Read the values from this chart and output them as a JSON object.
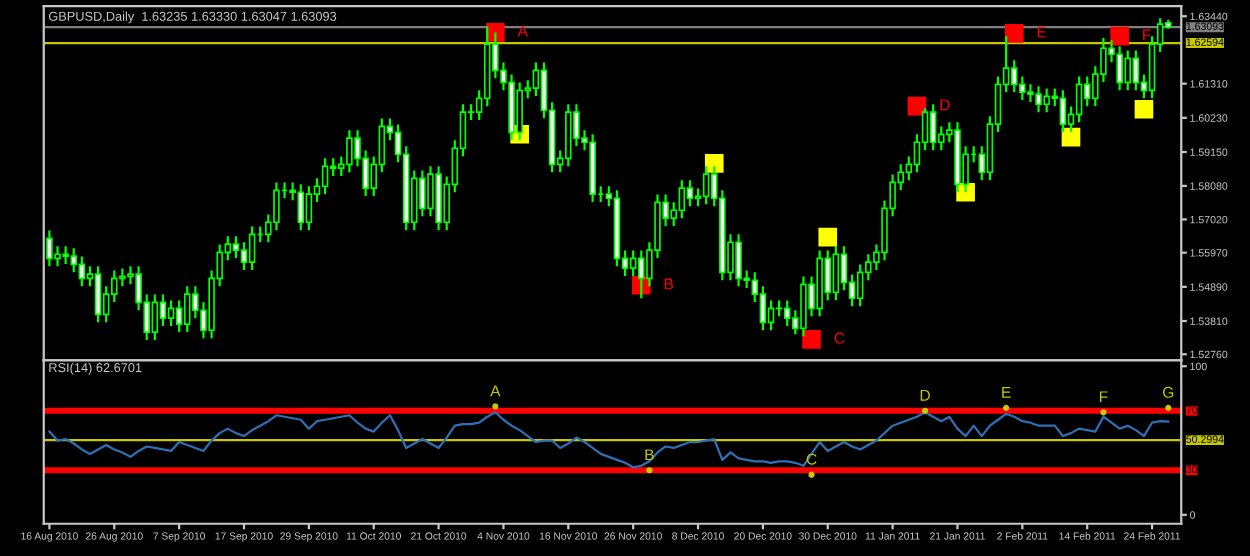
{
  "chart_data": [
    {
      "type": "candlestick",
      "title": "GBPUSD,Daily  1.63235 1.63330 1.63047 1.63093",
      "color": "#00ff00",
      "tick_labels": "y",
      "grid": false,
      "categories": [
        null,
        null,
        null,
        null,
        null,
        null,
        null,
        null,
        null,
        null,
        null,
        null,
        null,
        null,
        null,
        null,
        null,
        null,
        null,
        null,
        null,
        null,
        null,
        null,
        null,
        null,
        null,
        null,
        null,
        null,
        null,
        null,
        null,
        null,
        null,
        null,
        null,
        null,
        null,
        null,
        null,
        null,
        null,
        null,
        null,
        null,
        null,
        null,
        null,
        null,
        null,
        null,
        null,
        null,
        null,
        null,
        null,
        null,
        null,
        null,
        null,
        null,
        null,
        null,
        null,
        null,
        null,
        null,
        null,
        null,
        null,
        null,
        null,
        null,
        null,
        null,
        null,
        null,
        null,
        null,
        null,
        null,
        null,
        null,
        null,
        null,
        null,
        null,
        null,
        null,
        null,
        null,
        null,
        null,
        null,
        null,
        null,
        null,
        null,
        null,
        null,
        null,
        null,
        null,
        null,
        null,
        null,
        null,
        null,
        null,
        null,
        null,
        null,
        null,
        null,
        null,
        null,
        null,
        null,
        null,
        null,
        null,
        null,
        null,
        null,
        null,
        null,
        null,
        null,
        null,
        null,
        null,
        null,
        null,
        null,
        null,
        null,
        null,
        null
      ],
      "ohlc": [
        [
          1.5642,
          1.5667,
          1.5554,
          1.5579
        ],
        [
          1.5579,
          1.5617,
          1.5554,
          1.5592
        ],
        [
          1.5592,
          1.5617,
          1.5561,
          1.5586
        ],
        [
          1.5586,
          1.5611,
          1.5535,
          1.556
        ],
        [
          1.556,
          1.5585,
          1.5491,
          1.5516
        ],
        [
          1.5516,
          1.5554,
          1.5491,
          1.5529
        ],
        [
          1.5529,
          1.5554,
          1.5377,
          1.5402
        ],
        [
          1.5402,
          1.5491,
          1.5377,
          1.5466
        ],
        [
          1.5466,
          1.5541,
          1.5441,
          1.5516
        ],
        [
          1.5516,
          1.5547,
          1.5491,
          1.5522
        ],
        [
          1.5522,
          1.5554,
          1.5497,
          1.5529
        ],
        [
          1.5529,
          1.5554,
          1.5415,
          1.544
        ],
        [
          1.544,
          1.5465,
          1.5321,
          1.5346
        ],
        [
          1.5346,
          1.5465,
          1.5321,
          1.544
        ],
        [
          1.544,
          1.5465,
          1.5365,
          1.539
        ],
        [
          1.539,
          1.5446,
          1.5365,
          1.5421
        ],
        [
          1.5421,
          1.5446,
          1.5346,
          1.5371
        ],
        [
          1.5371,
          1.5491,
          1.5346,
          1.5466
        ],
        [
          1.5466,
          1.5491,
          1.539,
          1.5415
        ],
        [
          1.5415,
          1.544,
          1.5327,
          1.5352
        ],
        [
          1.5352,
          1.5541,
          1.5327,
          1.5516
        ],
        [
          1.5516,
          1.5623,
          1.5491,
          1.5598
        ],
        [
          1.5598,
          1.5649,
          1.5573,
          1.5624
        ],
        [
          1.5624,
          1.5649,
          1.558,
          1.5605
        ],
        [
          1.5605,
          1.563,
          1.5542,
          1.5567
        ],
        [
          1.5567,
          1.568,
          1.5542,
          1.5655
        ],
        [
          1.5655,
          1.568,
          1.563,
          1.5655
        ],
        [
          1.5655,
          1.5718,
          1.563,
          1.5693
        ],
        [
          1.5693,
          1.5819,
          1.5668,
          1.5794
        ],
        [
          1.5794,
          1.5819,
          1.5769,
          1.5794
        ],
        [
          1.5794,
          1.5819,
          1.5763,
          1.5788
        ],
        [
          1.5788,
          1.5813,
          1.5668,
          1.5693
        ],
        [
          1.5693,
          1.5807,
          1.5668,
          1.5782
        ],
        [
          1.5782,
          1.5832,
          1.5757,
          1.5807
        ],
        [
          1.5807,
          1.5895,
          1.5782,
          1.587
        ],
        [
          1.587,
          1.5895,
          1.5839,
          1.5864
        ],
        [
          1.5864,
          1.5901,
          1.5839,
          1.5876
        ],
        [
          1.5876,
          1.5984,
          1.5851,
          1.5959
        ],
        [
          1.5959,
          1.5984,
          1.587,
          1.5895
        ],
        [
          1.5895,
          1.592,
          1.5776,
          1.5801
        ],
        [
          1.5801,
          1.5901,
          1.5776,
          1.5876
        ],
        [
          1.5876,
          1.6021,
          1.5851,
          1.5996
        ],
        [
          1.5996,
          1.6021,
          1.5952,
          1.5977
        ],
        [
          1.5977,
          1.6002,
          1.5883,
          1.5908
        ],
        [
          1.5908,
          1.5933,
          1.5668,
          1.5693
        ],
        [
          1.5693,
          1.5857,
          1.5668,
          1.5832
        ],
        [
          1.5832,
          1.5857,
          1.5712,
          1.5737
        ],
        [
          1.5737,
          1.587,
          1.5712,
          1.5845
        ],
        [
          1.5845,
          1.587,
          1.5668,
          1.5693
        ],
        [
          1.5693,
          1.5838,
          1.5668,
          1.5813
        ],
        [
          1.5813,
          1.5952,
          1.5788,
          1.5927
        ],
        [
          1.5927,
          1.6066,
          1.5902,
          1.6041
        ],
        [
          1.6041,
          1.6066,
          1.6016,
          1.6041
        ],
        [
          1.6041,
          1.611,
          1.6016,
          1.6085
        ],
        [
          1.6085,
          1.6312,
          1.606,
          1.6256
        ],
        [
          1.6256,
          1.6293,
          1.6148,
          1.6173
        ],
        [
          1.6173,
          1.6198,
          1.611,
          1.6135
        ],
        [
          1.6135,
          1.616,
          1.5952,
          1.5977
        ],
        [
          1.5977,
          1.6135,
          1.5952,
          1.611
        ],
        [
          1.611,
          1.6142,
          1.6085,
          1.6117
        ],
        [
          1.6117,
          1.6198,
          1.6092,
          1.6173
        ],
        [
          1.6173,
          1.6198,
          1.6022,
          1.6047
        ],
        [
          1.6047,
          1.6072,
          1.5851,
          1.5876
        ],
        [
          1.5876,
          1.592,
          1.5851,
          1.5895
        ],
        [
          1.5895,
          1.6066,
          1.587,
          1.6041
        ],
        [
          1.6041,
          1.6066,
          1.5934,
          1.5959
        ],
        [
          1.5959,
          1.5984,
          1.5921,
          1.5946
        ],
        [
          1.5946,
          1.5971,
          1.5757,
          1.5782
        ],
        [
          1.5782,
          1.5807,
          1.5757,
          1.5782
        ],
        [
          1.5782,
          1.5807,
          1.5744,
          1.5769
        ],
        [
          1.5769,
          1.5794,
          1.5554,
          1.5579
        ],
        [
          1.5579,
          1.5604,
          1.5523,
          1.5548
        ],
        [
          1.5548,
          1.5604,
          1.5523,
          1.5579
        ],
        [
          1.5579,
          1.5604,
          1.5453,
          1.5516
        ],
        [
          1.5516,
          1.563,
          1.5491,
          1.5605
        ],
        [
          1.5605,
          1.5781,
          1.558,
          1.5756
        ],
        [
          1.5756,
          1.5781,
          1.5681,
          1.5706
        ],
        [
          1.5706,
          1.5756,
          1.5681,
          1.5731
        ],
        [
          1.5731,
          1.5826,
          1.5706,
          1.5801
        ],
        [
          1.5801,
          1.5826,
          1.5744,
          1.5769
        ],
        [
          1.5769,
          1.58,
          1.5744,
          1.5775
        ],
        [
          1.5775,
          1.587,
          1.575,
          1.5845
        ],
        [
          1.5845,
          1.587,
          1.5744,
          1.5769
        ],
        [
          1.5769,
          1.5794,
          1.551,
          1.5535
        ],
        [
          1.5535,
          1.5655,
          1.551,
          1.563
        ],
        [
          1.563,
          1.5655,
          1.5491,
          1.5516
        ],
        [
          1.5516,
          1.5541,
          1.5485,
          1.551
        ],
        [
          1.551,
          1.5535,
          1.5441,
          1.5466
        ],
        [
          1.5466,
          1.5491,
          1.5352,
          1.5377
        ],
        [
          1.5377,
          1.5446,
          1.5352,
          1.5421
        ],
        [
          1.5421,
          1.5446,
          1.5396,
          1.5421
        ],
        [
          1.5421,
          1.5446,
          1.5365,
          1.539
        ],
        [
          1.539,
          1.5415,
          1.5339,
          1.5358
        ],
        [
          1.5358,
          1.5522,
          1.5333,
          1.5497
        ],
        [
          1.5497,
          1.5522,
          1.5396,
          1.5421
        ],
        [
          1.5421,
          1.5604,
          1.5396,
          1.5579
        ],
        [
          1.5579,
          1.5604,
          1.5447,
          1.5472
        ],
        [
          1.5472,
          1.5617,
          1.5447,
          1.5592
        ],
        [
          1.5592,
          1.5617,
          1.5478,
          1.5503
        ],
        [
          1.5503,
          1.5528,
          1.5428,
          1.5453
        ],
        [
          1.5453,
          1.556,
          1.5428,
          1.5535
        ],
        [
          1.5535,
          1.5592,
          1.551,
          1.5567
        ],
        [
          1.5567,
          1.5623,
          1.5542,
          1.5598
        ],
        [
          1.5598,
          1.5762,
          1.5573,
          1.5737
        ],
        [
          1.5737,
          1.5844,
          1.5712,
          1.5819
        ],
        [
          1.5819,
          1.5876,
          1.5794,
          1.5851
        ],
        [
          1.5851,
          1.5901,
          1.5826,
          1.5876
        ],
        [
          1.5876,
          1.5971,
          1.5851,
          1.5946
        ],
        [
          1.5946,
          1.6053,
          1.5921,
          1.6041
        ],
        [
          1.6041,
          1.6066,
          1.5921,
          1.5946
        ],
        [
          1.5946,
          1.5996,
          1.5921,
          1.5971
        ],
        [
          1.5971,
          1.6009,
          1.5946,
          1.5984
        ],
        [
          1.5984,
          1.6009,
          1.5788,
          1.5813
        ],
        [
          1.5813,
          1.5933,
          1.5788,
          1.5908
        ],
        [
          1.5908,
          1.5933,
          1.5883,
          1.5908
        ],
        [
          1.5908,
          1.5933,
          1.5826,
          1.5851
        ],
        [
          1.5851,
          1.6028,
          1.5826,
          1.6003
        ],
        [
          1.6003,
          1.6154,
          1.5978,
          1.6129
        ],
        [
          1.6129,
          1.6281,
          1.6104,
          1.618
        ],
        [
          1.618,
          1.6205,
          1.6104,
          1.6129
        ],
        [
          1.6129,
          1.6154,
          1.6079,
          1.6104
        ],
        [
          1.6104,
          1.6129,
          1.6073,
          1.6098
        ],
        [
          1.6098,
          1.6123,
          1.6041,
          1.6066
        ],
        [
          1.6066,
          1.6116,
          1.6041,
          1.6091
        ],
        [
          1.6091,
          1.6116,
          1.606,
          1.6085
        ],
        [
          1.6085,
          1.611,
          1.5978,
          1.6003
        ],
        [
          1.6003,
          1.6059,
          1.5978,
          1.6034
        ],
        [
          1.6034,
          1.6154,
          1.6009,
          1.6129
        ],
        [
          1.6129,
          1.6154,
          1.606,
          1.6085
        ],
        [
          1.6085,
          1.6186,
          1.606,
          1.6161
        ],
        [
          1.6161,
          1.6275,
          1.6136,
          1.6243
        ],
        [
          1.6243,
          1.6268,
          1.6199,
          1.6224
        ],
        [
          1.6224,
          1.6249,
          1.611,
          1.6135
        ],
        [
          1.6135,
          1.6236,
          1.611,
          1.6211
        ],
        [
          1.6211,
          1.6236,
          1.611,
          1.6135
        ],
        [
          1.6135,
          1.616,
          1.6085,
          1.611
        ],
        [
          1.611,
          1.6281,
          1.6085,
          1.6256
        ],
        [
          1.6256,
          1.6338,
          1.6231,
          1.6319
        ],
        [
          1.63235,
          1.6333,
          1.63047,
          1.63093
        ]
      ],
      "series": [
        {
          "type": "scatter",
          "marker": "square",
          "color": "#ff0000",
          "values": [
            null,
            null,
            null,
            null,
            null,
            null,
            null,
            null,
            null,
            null,
            null,
            null,
            null,
            null,
            null,
            null,
            null,
            null,
            null,
            null,
            null,
            null,
            null,
            null,
            null,
            null,
            null,
            null,
            null,
            null,
            null,
            null,
            null,
            null,
            null,
            null,
            null,
            null,
            null,
            null,
            null,
            null,
            null,
            null,
            null,
            null,
            null,
            null,
            null,
            null,
            null,
            null,
            null,
            null,
            null,
            1.6293,
            null,
            null,
            null,
            null,
            null,
            null,
            null,
            null,
            null,
            null,
            null,
            null,
            null,
            null,
            null,
            null,
            null,
            1.5494,
            null,
            null,
            null,
            null,
            null,
            null,
            null,
            null,
            null,
            null,
            null,
            null,
            null,
            null,
            null,
            null,
            null,
            null,
            null,
            null,
            1.5323,
            null,
            null,
            null,
            null,
            null,
            null,
            null,
            null,
            null,
            null,
            null,
            null,
            1.606,
            null,
            null,
            null,
            null,
            null,
            null,
            null,
            null,
            null,
            null,
            null,
            1.629,
            null,
            null,
            null,
            null,
            null,
            null,
            null,
            null,
            null,
            null,
            null,
            null,
            1.6281,
            null,
            null,
            null,
            null,
            null,
            null
          ],
          "value_labels": [
            null,
            null,
            null,
            null,
            null,
            null,
            null,
            null,
            null,
            null,
            null,
            null,
            null,
            null,
            null,
            null,
            null,
            null,
            null,
            null,
            null,
            null,
            null,
            null,
            null,
            null,
            null,
            null,
            null,
            null,
            null,
            null,
            null,
            null,
            null,
            null,
            null,
            null,
            null,
            null,
            null,
            null,
            null,
            null,
            null,
            null,
            null,
            null,
            null,
            null,
            null,
            null,
            null,
            null,
            null,
            "A",
            null,
            null,
            null,
            null,
            null,
            null,
            null,
            null,
            null,
            null,
            null,
            null,
            null,
            null,
            null,
            null,
            null,
            "B",
            null,
            null,
            null,
            null,
            null,
            null,
            null,
            null,
            null,
            null,
            null,
            null,
            null,
            null,
            null,
            null,
            null,
            null,
            null,
            null,
            "C",
            null,
            null,
            null,
            null,
            null,
            null,
            null,
            null,
            null,
            null,
            null,
            null,
            "D",
            null,
            null,
            null,
            null,
            null,
            null,
            null,
            null,
            null,
            null,
            null,
            "E",
            null,
            null,
            null,
            null,
            null,
            null,
            null,
            null,
            null,
            null,
            null,
            null,
            "F",
            null,
            null,
            null,
            null,
            null,
            null
          ]
        },
        {
          "type": "scatter",
          "marker": "square",
          "color": "#ffff00",
          "values": [
            null,
            null,
            null,
            null,
            null,
            null,
            null,
            null,
            null,
            null,
            null,
            null,
            null,
            null,
            null,
            null,
            null,
            null,
            null,
            null,
            null,
            null,
            null,
            null,
            null,
            null,
            null,
            null,
            null,
            null,
            null,
            null,
            null,
            null,
            null,
            null,
            null,
            null,
            null,
            null,
            null,
            null,
            null,
            null,
            null,
            null,
            null,
            null,
            null,
            null,
            null,
            null,
            null,
            null,
            null,
            null,
            null,
            null,
            1.5971,
            null,
            null,
            null,
            null,
            null,
            null,
            null,
            null,
            null,
            null,
            null,
            null,
            null,
            null,
            null,
            null,
            null,
            null,
            null,
            null,
            null,
            null,
            null,
            1.5879,
            null,
            null,
            null,
            null,
            null,
            null,
            null,
            null,
            null,
            null,
            null,
            null,
            null,
            1.5646,
            null,
            null,
            null,
            null,
            null,
            null,
            null,
            null,
            null,
            null,
            null,
            null,
            null,
            null,
            null,
            null,
            1.5788,
            null,
            null,
            null,
            null,
            null,
            null,
            null,
            null,
            null,
            null,
            null,
            null,
            1.5962,
            null,
            null,
            null,
            null,
            null,
            null,
            null,
            null,
            1.605,
            null,
            null,
            null
          ]
        }
      ],
      "ylim": [
        1.5257,
        1.6376
      ],
      "yticks": [
        {
          "value": 1.6344,
          "label": "1.63440"
        },
        {
          "value": 1.6131,
          "label": "1.61310"
        },
        {
          "value": 1.6023,
          "label": "1.60230"
        },
        {
          "value": 1.5915,
          "label": "1.59150"
        },
        {
          "value": 1.5808,
          "label": "1.58080"
        },
        {
          "value": 1.5702,
          "label": "1.57020"
        },
        {
          "value": 1.5597,
          "label": "1.55970"
        },
        {
          "value": 1.5489,
          "label": "1.54890"
        },
        {
          "value": 1.5381,
          "label": "1.53810"
        },
        {
          "value": 1.5276,
          "label": "1.52760"
        }
      ],
      "ref_lines": [
        {
          "axis": "y",
          "value": 1.63093,
          "label": "1.63093",
          "color": "#808080"
        },
        {
          "axis": "y",
          "value": 1.62594,
          "label": "1.62594",
          "color": "#c8c800"
        }
      ]
    },
    {
      "type": "line",
      "title": "RSI(14) 62.6701",
      "grid": false,
      "categories": [
        "16 Aug 2010",
        null,
        null,
        null,
        null,
        null,
        null,
        null,
        "26 Aug 2010",
        null,
        null,
        null,
        null,
        null,
        null,
        null,
        "7 Sep 2010",
        null,
        null,
        null,
        null,
        null,
        null,
        null,
        "17 Sep 2010",
        null,
        null,
        null,
        null,
        null,
        null,
        null,
        "29 Sep 2010",
        null,
        null,
        null,
        null,
        null,
        null,
        null,
        "11 Oct 2010",
        null,
        null,
        null,
        null,
        null,
        null,
        null,
        "21 Oct 2010",
        null,
        null,
        null,
        null,
        null,
        null,
        null,
        "4 Nov 2010",
        null,
        null,
        null,
        null,
        null,
        null,
        null,
        "16 Nov 2010",
        null,
        null,
        null,
        null,
        null,
        null,
        null,
        "26 Nov 2010",
        null,
        null,
        null,
        null,
        null,
        null,
        null,
        "8 Dec 2010",
        null,
        null,
        null,
        null,
        null,
        null,
        null,
        "20 Dec 2010",
        null,
        null,
        null,
        null,
        null,
        null,
        null,
        "30 Dec 2010",
        null,
        null,
        null,
        null,
        null,
        null,
        null,
        "11 Jan 2011",
        null,
        null,
        null,
        null,
        null,
        null,
        null,
        "21 Jan 2011",
        null,
        null,
        null,
        null,
        null,
        null,
        null,
        "2 Feb 2011",
        null,
        null,
        null,
        null,
        null,
        null,
        null,
        "14 Feb 2011",
        null,
        null,
        null,
        null,
        null,
        null,
        null,
        "24 Feb 2011",
        null,
        null
      ],
      "series": [
        {
          "color": "#2f6fb5",
          "values": [
            56,
            50,
            51,
            48,
            44,
            41,
            44,
            47,
            44,
            42,
            39,
            43,
            46,
            45,
            44,
            43,
            49,
            47,
            45,
            43,
            50,
            55,
            58,
            55,
            53,
            57,
            60,
            63,
            67,
            66,
            65,
            64,
            58,
            63,
            64,
            65,
            66,
            67,
            62,
            58,
            56,
            62,
            67,
            57,
            45,
            48,
            51,
            48,
            45,
            52,
            60,
            61,
            61,
            62,
            66,
            69,
            64,
            60,
            57,
            53,
            49,
            50,
            50,
            45,
            48,
            52,
            49,
            45,
            41,
            39,
            37,
            35,
            32,
            33,
            36,
            42,
            46,
            45,
            47,
            49,
            49,
            50,
            51,
            37,
            42,
            38,
            37,
            36,
            36,
            35,
            36,
            36,
            35,
            33,
            41,
            49,
            43,
            46,
            49,
            46,
            44,
            47,
            50,
            55,
            60,
            62,
            64,
            66,
            69,
            66,
            63,
            66,
            58,
            53,
            60,
            53,
            60,
            64,
            68,
            66,
            63,
            62,
            60,
            60,
            60,
            53,
            55,
            58,
            57,
            56,
            66,
            62,
            58,
            60,
            57,
            53,
            62,
            63,
            62.7
          ]
        },
        {
          "type": "scatter",
          "marker": "circle",
          "color": "#c8c800",
          "values": [
            null,
            null,
            null,
            null,
            null,
            null,
            null,
            null,
            null,
            null,
            null,
            null,
            null,
            null,
            null,
            null,
            null,
            null,
            null,
            null,
            null,
            null,
            null,
            null,
            null,
            null,
            null,
            null,
            null,
            null,
            null,
            null,
            null,
            null,
            null,
            null,
            null,
            null,
            null,
            null,
            null,
            null,
            null,
            null,
            null,
            null,
            null,
            null,
            null,
            null,
            null,
            null,
            null,
            null,
            null,
            73,
            null,
            null,
            null,
            null,
            null,
            null,
            null,
            null,
            null,
            null,
            null,
            null,
            null,
            null,
            null,
            null,
            null,
            null,
            30,
            null,
            null,
            null,
            null,
            null,
            null,
            null,
            null,
            null,
            null,
            null,
            null,
            null,
            null,
            null,
            null,
            null,
            null,
            null,
            27,
            null,
            null,
            null,
            null,
            null,
            null,
            null,
            null,
            null,
            null,
            null,
            null,
            null,
            70,
            null,
            null,
            null,
            null,
            null,
            null,
            null,
            null,
            null,
            72,
            null,
            null,
            null,
            null,
            null,
            null,
            null,
            null,
            null,
            null,
            null,
            69,
            null,
            null,
            null,
            null,
            null,
            null,
            null,
            72
          ],
          "value_labels": [
            null,
            null,
            null,
            null,
            null,
            null,
            null,
            null,
            null,
            null,
            null,
            null,
            null,
            null,
            null,
            null,
            null,
            null,
            null,
            null,
            null,
            null,
            null,
            null,
            null,
            null,
            null,
            null,
            null,
            null,
            null,
            null,
            null,
            null,
            null,
            null,
            null,
            null,
            null,
            null,
            null,
            null,
            null,
            null,
            null,
            null,
            null,
            null,
            null,
            null,
            null,
            null,
            null,
            null,
            null,
            "A",
            null,
            null,
            null,
            null,
            null,
            null,
            null,
            null,
            null,
            null,
            null,
            null,
            null,
            null,
            null,
            null,
            null,
            null,
            "B",
            null,
            null,
            null,
            null,
            null,
            null,
            null,
            null,
            null,
            null,
            null,
            null,
            null,
            null,
            null,
            null,
            null,
            null,
            null,
            "C",
            null,
            null,
            null,
            null,
            null,
            null,
            null,
            null,
            null,
            null,
            null,
            null,
            null,
            "D",
            null,
            null,
            null,
            null,
            null,
            null,
            null,
            null,
            null,
            "E",
            null,
            null,
            null,
            null,
            null,
            null,
            null,
            null,
            null,
            null,
            null,
            "F",
            null,
            null,
            null,
            null,
            null,
            null,
            null,
            "G"
          ]
        }
      ],
      "ylim": [
        -6,
        104
      ],
      "yticks": [
        0,
        100
      ],
      "ref_lines": [
        {
          "axis": "y",
          "value": 70,
          "label": "70",
          "color": "#ff0000"
        },
        {
          "axis": "y",
          "value": 30,
          "label": "30",
          "color": "#ff0000"
        },
        {
          "axis": "y",
          "value": 50.2994,
          "label": "50.2994",
          "color": "#c8c800"
        }
      ]
    }
  ]
}
